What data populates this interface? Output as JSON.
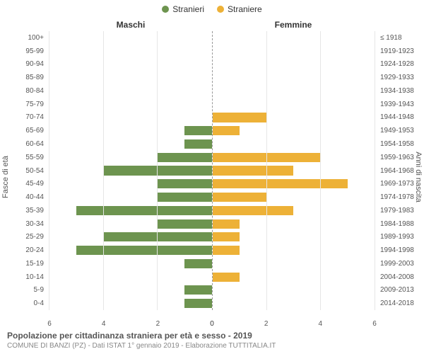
{
  "legend": {
    "male": {
      "label": "Stranieri",
      "color": "#6d944f"
    },
    "female": {
      "label": "Straniere",
      "color": "#edb137"
    }
  },
  "panels": {
    "left": "Maschi",
    "right": "Femmine"
  },
  "axes": {
    "left_title": "Fasce di età",
    "right_title": "Anni di nascita",
    "xlim": 6,
    "xtick_step": 2,
    "gridline_color": "#e6e6e6",
    "center_line_color": "#999999"
  },
  "age_bands": [
    "100+",
    "95-99",
    "90-94",
    "85-89",
    "80-84",
    "75-79",
    "70-74",
    "65-69",
    "60-64",
    "55-59",
    "50-54",
    "45-49",
    "40-44",
    "35-39",
    "30-34",
    "25-29",
    "20-24",
    "15-19",
    "10-14",
    "5-9",
    "0-4"
  ],
  "birth_bands": [
    "≤ 1918",
    "1919-1923",
    "1924-1928",
    "1929-1933",
    "1934-1938",
    "1939-1943",
    "1944-1948",
    "1949-1953",
    "1954-1958",
    "1959-1963",
    "1964-1968",
    "1969-1973",
    "1974-1978",
    "1979-1983",
    "1984-1988",
    "1989-1993",
    "1994-1998",
    "1999-2003",
    "2004-2008",
    "2009-2013",
    "2014-2018"
  ],
  "male_values": [
    0,
    0,
    0,
    0,
    0,
    0,
    0,
    1,
    1,
    2,
    4,
    2,
    2,
    5,
    2,
    4,
    5,
    1,
    0,
    1,
    1
  ],
  "female_values": [
    0,
    0,
    0,
    0,
    0,
    0,
    2,
    1,
    0,
    4,
    3,
    5,
    2,
    3,
    1,
    1,
    1,
    0,
    1,
    0,
    0
  ],
  "footer": {
    "title": "Popolazione per cittadinanza straniera per età e sesso - 2019",
    "subtitle": "COMUNE DI BANZI (PZ) - Dati ISTAT 1° gennaio 2019 - Elaborazione TUTTITALIA.IT"
  },
  "style": {
    "background": "#ffffff",
    "tick_color": "#555555",
    "label_fontsize": 10,
    "panel_title_fontsize": 12
  }
}
